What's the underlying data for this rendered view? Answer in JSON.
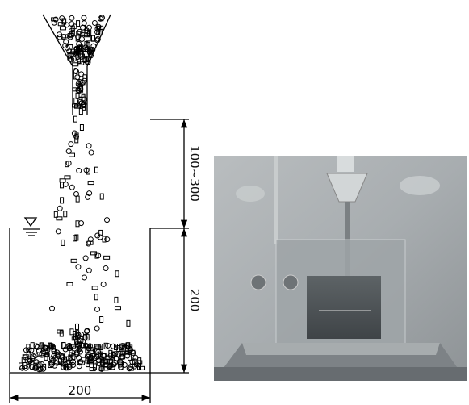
{
  "dimensions": {
    "drop_height": "100~300",
    "water_depth": "200",
    "tank_width": "200"
  }
}
